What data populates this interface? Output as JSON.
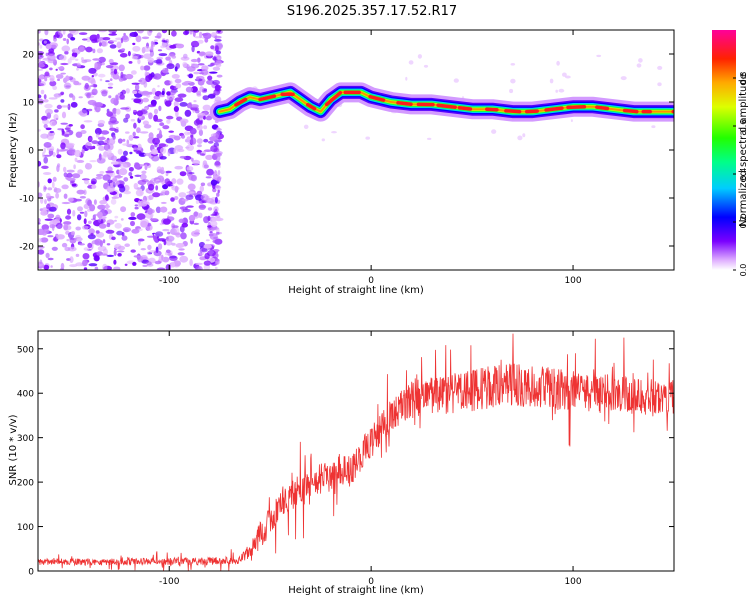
{
  "figure_title": "S196.2025.357.17.52.R17",
  "chart_data": [
    {
      "type": "heatmap",
      "title": "",
      "xlabel": "Height of straight line (km)",
      "ylabel": "Frequency (Hz)",
      "xlim": [
        -165,
        150
      ],
      "ylim": [
        -25,
        25
      ],
      "xticks": [
        -100,
        0,
        100
      ],
      "yticks": [
        -20,
        -10,
        0,
        10,
        20
      ],
      "colorbar": {
        "label": "Normalized spectral amplitude",
        "range": [
          0,
          1
        ],
        "ticks": [
          0.0,
          0.2,
          0.4,
          0.6,
          0.8
        ]
      },
      "noise_region_x_end": -75,
      "ridge": {
        "x": [
          -75,
          -70,
          -65,
          -60,
          -55,
          -50,
          -45,
          -40,
          -35,
          -30,
          -25,
          -20,
          -15,
          -10,
          -5,
          0,
          5,
          10,
          20,
          30,
          40,
          50,
          60,
          70,
          80,
          90,
          100,
          110,
          120,
          130,
          140,
          150
        ],
        "freq": [
          8,
          8.5,
          10,
          11,
          10.5,
          11,
          11.5,
          12,
          10.5,
          9,
          8,
          10.5,
          12,
          12,
          12,
          11,
          10.5,
          10,
          9.5,
          9.5,
          9,
          8.5,
          8.5,
          8,
          8,
          8.5,
          9,
          9,
          8.5,
          8,
          8,
          8
        ]
      }
    },
    {
      "type": "line",
      "title": "",
      "xlabel": "Height of straight line (km)",
      "ylabel": "SNR (10 * v/v)",
      "xlim": [
        -165,
        150
      ],
      "ylim": [
        0,
        540
      ],
      "xticks": [
        -100,
        0,
        100
      ],
      "yticks": [
        0,
        100,
        200,
        300,
        400,
        500
      ],
      "color": "#ee3333",
      "envelope": {
        "x": [
          -165,
          -80,
          -65,
          -60,
          -55,
          -50,
          -45,
          -40,
          -35,
          -30,
          -25,
          -20,
          -15,
          -10,
          -5,
          0,
          5,
          10,
          15,
          20,
          30,
          40,
          50,
          60,
          70,
          80,
          90,
          100,
          110,
          120,
          130,
          140,
          150
        ],
        "mean": [
          20,
          22,
          25,
          45,
          80,
          120,
          150,
          170,
          180,
          190,
          210,
          215,
          230,
          225,
          260,
          290,
          320,
          350,
          370,
          385,
          395,
          400,
          405,
          415,
          420,
          415,
          410,
          405,
          395,
          400,
          390,
          390,
          395
        ],
        "amp": [
          12,
          14,
          15,
          30,
          50,
          60,
          60,
          60,
          60,
          60,
          60,
          60,
          60,
          60,
          60,
          60,
          60,
          60,
          65,
          70,
          75,
          80,
          80,
          80,
          80,
          80,
          80,
          75,
          75,
          75,
          75,
          70,
          70
        ]
      }
    }
  ]
}
